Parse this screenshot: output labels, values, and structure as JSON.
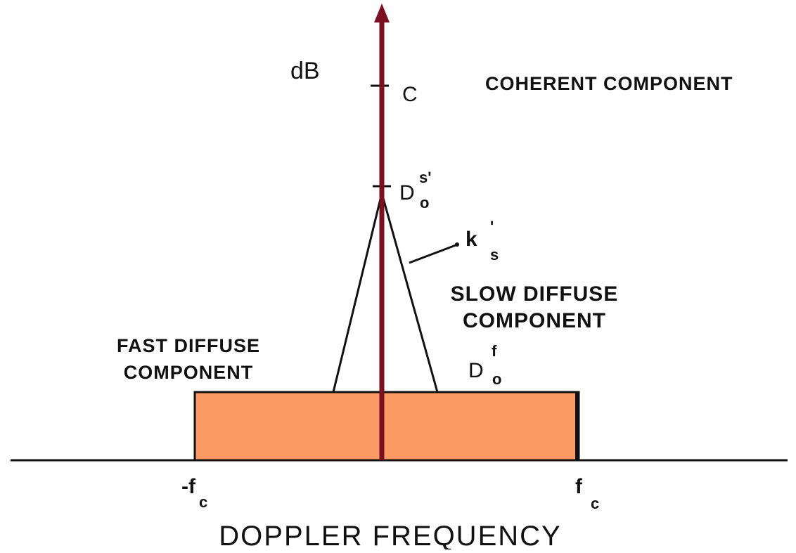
{
  "axis": {
    "y_label": "dB",
    "x_label": "DOPPLER FREQUENCY",
    "left_edge": {
      "symbol": "-f",
      "subscript": "c"
    },
    "right_edge": {
      "symbol": "f",
      "subscript": "c"
    }
  },
  "coherent": {
    "symbol": "C",
    "label": "COHERENT COMPONENT"
  },
  "slow_peak": {
    "symbol": "D",
    "superscript": "s'",
    "subscript": "o"
  },
  "slope": {
    "symbol": "k",
    "superscript": "'",
    "subscript": "s"
  },
  "slow_diffuse": {
    "label_lines": [
      "SLOW DIFFUSE",
      "COMPONENT"
    ]
  },
  "fast_diffuse": {
    "label_lines": [
      "FAST DIFFUSE",
      "COMPONENT"
    ],
    "symbol": "D",
    "superscript": "f",
    "subscript": "o"
  }
}
